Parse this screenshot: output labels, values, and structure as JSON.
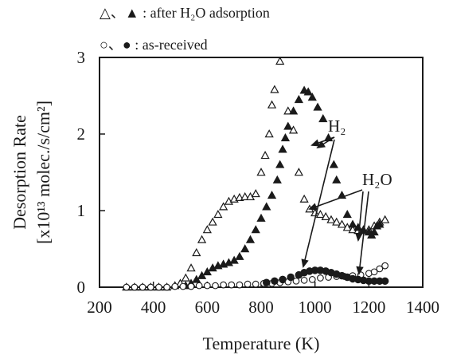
{
  "chart_data": {
    "type": "scatter",
    "xlabel": "Temperature (K)",
    "ylabel_line1": "Desorption Rate",
    "ylabel_line2": "[x10¹³ molec./s/cm²]",
    "xlim": [
      200,
      1400
    ],
    "ylim": [
      0,
      3
    ],
    "x_ticks": [
      200,
      400,
      600,
      800,
      1000,
      1200,
      1400
    ],
    "y_ticks": [
      0,
      1,
      2,
      3
    ],
    "grid": false,
    "legend": [
      {
        "text": "△、▲ : after H₂O adsorption"
      },
      {
        "text": "○、● : as-received"
      }
    ],
    "annotations": [
      {
        "text": "H₂"
      },
      {
        "text": "H₂O"
      }
    ],
    "series": [
      {
        "marker": "triangle-open",
        "color": "#1a1a1a",
        "points": [
          [
            300,
            0.0
          ],
          [
            330,
            0.0
          ],
          [
            360,
            0.0
          ],
          [
            390,
            0.0
          ],
          [
            420,
            0.0
          ],
          [
            450,
            0.0
          ],
          [
            480,
            0.02
          ],
          [
            500,
            0.05
          ],
          [
            520,
            0.12
          ],
          [
            540,
            0.25
          ],
          [
            560,
            0.45
          ],
          [
            580,
            0.62
          ],
          [
            600,
            0.75
          ],
          [
            620,
            0.85
          ],
          [
            640,
            0.95
          ],
          [
            660,
            1.05
          ],
          [
            680,
            1.12
          ],
          [
            700,
            1.15
          ],
          [
            720,
            1.17
          ],
          [
            740,
            1.18
          ],
          [
            760,
            1.18
          ],
          [
            780,
            1.22
          ],
          [
            800,
            1.5
          ],
          [
            815,
            1.72
          ],
          [
            830,
            2.0
          ],
          [
            840,
            2.38
          ],
          [
            850,
            2.58
          ],
          [
            870,
            2.95
          ],
          [
            900,
            2.3
          ],
          [
            920,
            2.05
          ],
          [
            940,
            1.5
          ],
          [
            960,
            1.15
          ],
          [
            980,
            1.02
          ],
          [
            1000,
            0.97
          ],
          [
            1020,
            0.95
          ],
          [
            1040,
            0.92
          ],
          [
            1060,
            0.88
          ],
          [
            1080,
            0.85
          ],
          [
            1100,
            0.82
          ],
          [
            1120,
            0.78
          ],
          [
            1140,
            0.75
          ],
          [
            1160,
            0.74
          ],
          [
            1180,
            0.74
          ],
          [
            1200,
            0.75
          ],
          [
            1220,
            0.8
          ],
          [
            1240,
            0.85
          ],
          [
            1260,
            0.88
          ]
        ]
      },
      {
        "marker": "triangle-filled",
        "color": "#1a1a1a",
        "points": [
          [
            520,
            0.02
          ],
          [
            540,
            0.05
          ],
          [
            560,
            0.1
          ],
          [
            580,
            0.15
          ],
          [
            600,
            0.2
          ],
          [
            620,
            0.25
          ],
          [
            640,
            0.28
          ],
          [
            660,
            0.3
          ],
          [
            680,
            0.32
          ],
          [
            700,
            0.35
          ],
          [
            720,
            0.4
          ],
          [
            740,
            0.5
          ],
          [
            760,
            0.62
          ],
          [
            780,
            0.75
          ],
          [
            800,
            0.9
          ],
          [
            820,
            1.05
          ],
          [
            840,
            1.2
          ],
          [
            860,
            1.4
          ],
          [
            870,
            1.6
          ],
          [
            880,
            1.8
          ],
          [
            890,
            1.95
          ],
          [
            900,
            2.1
          ],
          [
            920,
            2.3
          ],
          [
            940,
            2.45
          ],
          [
            960,
            2.57
          ],
          [
            975,
            2.55
          ],
          [
            990,
            2.48
          ],
          [
            1010,
            2.35
          ],
          [
            1030,
            2.2
          ],
          [
            1050,
            1.95
          ],
          [
            1070,
            1.6
          ],
          [
            1080,
            1.4
          ],
          [
            1100,
            1.2
          ],
          [
            1120,
            0.95
          ],
          [
            1140,
            0.82
          ],
          [
            1160,
            0.78
          ],
          [
            1180,
            0.75
          ],
          [
            1200,
            0.72
          ],
          [
            1210,
            0.68
          ],
          [
            1220,
            0.72
          ],
          [
            1230,
            0.8
          ],
          [
            1240,
            0.82
          ]
        ]
      },
      {
        "marker": "circle-open",
        "color": "#1a1a1a",
        "points": [
          [
            300,
            0.0
          ],
          [
            330,
            0.0
          ],
          [
            360,
            0.0
          ],
          [
            390,
            0.0
          ],
          [
            420,
            0.0
          ],
          [
            450,
            0.0
          ],
          [
            480,
            0.01
          ],
          [
            510,
            0.01
          ],
          [
            540,
            0.01
          ],
          [
            570,
            0.02
          ],
          [
            600,
            0.02
          ],
          [
            630,
            0.02
          ],
          [
            660,
            0.03
          ],
          [
            690,
            0.03
          ],
          [
            720,
            0.03
          ],
          [
            750,
            0.04
          ],
          [
            780,
            0.04
          ],
          [
            810,
            0.05
          ],
          [
            840,
            0.05
          ],
          [
            870,
            0.06
          ],
          [
            900,
            0.07
          ],
          [
            930,
            0.08
          ],
          [
            960,
            0.09
          ],
          [
            990,
            0.1
          ],
          [
            1020,
            0.12
          ],
          [
            1050,
            0.13
          ],
          [
            1080,
            0.14
          ],
          [
            1110,
            0.14
          ],
          [
            1140,
            0.15
          ],
          [
            1170,
            0.16
          ],
          [
            1200,
            0.18
          ],
          [
            1220,
            0.2
          ],
          [
            1240,
            0.24
          ],
          [
            1260,
            0.28
          ]
        ]
      },
      {
        "marker": "circle-filled",
        "color": "#1a1a1a",
        "points": [
          [
            820,
            0.06
          ],
          [
            850,
            0.08
          ],
          [
            880,
            0.1
          ],
          [
            910,
            0.13
          ],
          [
            940,
            0.16
          ],
          [
            960,
            0.19
          ],
          [
            980,
            0.21
          ],
          [
            1000,
            0.22
          ],
          [
            1020,
            0.22
          ],
          [
            1040,
            0.21
          ],
          [
            1060,
            0.19
          ],
          [
            1080,
            0.17
          ],
          [
            1100,
            0.15
          ],
          [
            1120,
            0.13
          ],
          [
            1140,
            0.11
          ],
          [
            1160,
            0.1
          ],
          [
            1180,
            0.09
          ],
          [
            1200,
            0.08
          ],
          [
            1220,
            0.08
          ],
          [
            1240,
            0.08
          ],
          [
            1260,
            0.08
          ]
        ]
      }
    ]
  }
}
